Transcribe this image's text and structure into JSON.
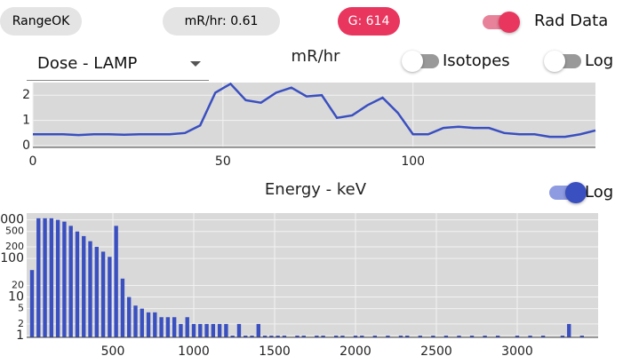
{
  "header": {
    "range": "RangeOK",
    "dose_rate": "mR/hr: 0.61",
    "gross": "G: 614",
    "rad_data": "Rad Data"
  },
  "dose_controls": {
    "dropdown": "Dose - LAMP",
    "isotopes": "Isotopes",
    "log": "Log"
  },
  "energy_controls": {
    "log": "Log"
  },
  "chart_data": [
    {
      "type": "line",
      "title": "mR/hr",
      "color": "#3a4fc0",
      "grid": true,
      "x": [
        0,
        4,
        8,
        12,
        16,
        20,
        24,
        28,
        32,
        36,
        40,
        44,
        48,
        52,
        56,
        60,
        64,
        68,
        72,
        76,
        80,
        84,
        88,
        92,
        96,
        100,
        104,
        108,
        112,
        116,
        120,
        124,
        128,
        132,
        136,
        140,
        144,
        148
      ],
      "values": [
        0.45,
        0.45,
        0.45,
        0.42,
        0.45,
        0.45,
        0.43,
        0.45,
        0.45,
        0.45,
        0.5,
        0.8,
        2.1,
        2.45,
        1.8,
        1.7,
        2.1,
        2.3,
        1.95,
        2.0,
        1.1,
        1.2,
        1.6,
        1.9,
        1.3,
        0.45,
        0.45,
        0.7,
        0.75,
        0.7,
        0.7,
        0.5,
        0.45,
        0.45,
        0.35,
        0.35,
        0.45,
        0.6
      ],
      "xlim": [
        0,
        148
      ],
      "ylim": [
        -0.07,
        2.5
      ],
      "xticks": [
        0,
        50,
        100
      ],
      "yticks": [
        0,
        1,
        2
      ]
    },
    {
      "type": "bar",
      "title": "Energy - keV",
      "color": "#3a4fc0",
      "grid": true,
      "log_scale": true,
      "x": [
        0,
        40,
        80,
        120,
        160,
        200,
        240,
        280,
        320,
        360,
        400,
        440,
        480,
        520,
        560,
        600,
        640,
        680,
        720,
        760,
        800,
        840,
        880,
        920,
        960,
        1000,
        1040,
        1080,
        1120,
        1160,
        1200,
        1240,
        1280,
        1320,
        1360,
        1400,
        1440,
        1480,
        1520,
        1560,
        1600,
        1640,
        1680,
        1720,
        1760,
        1800,
        1840,
        1880,
        1920,
        1960,
        2000,
        2040,
        2080,
        2120,
        2160,
        2200,
        2240,
        2280,
        2320,
        2360,
        2400,
        2440,
        2480,
        2520,
        2560,
        2600,
        2640,
        2680,
        2720,
        2760,
        2800,
        2840,
        2880,
        2920,
        2960,
        3000,
        3040,
        3080,
        3120,
        3160,
        3200,
        3240,
        3280,
        3320,
        3360,
        3400,
        3440
      ],
      "values": [
        50,
        1100,
        1100,
        1100,
        1000,
        900,
        700,
        500,
        380,
        280,
        200,
        150,
        110,
        700,
        30,
        10,
        6,
        5,
        4,
        4,
        3,
        3,
        3,
        2,
        3,
        2,
        2,
        2,
        2,
        2,
        2,
        1,
        2,
        1,
        1,
        2,
        1,
        1,
        1,
        1,
        0,
        1,
        1,
        0,
        1,
        1,
        0,
        1,
        1,
        0,
        1,
        1,
        0,
        1,
        0,
        1,
        0,
        1,
        1,
        0,
        1,
        0,
        1,
        0,
        1,
        0,
        1,
        0,
        1,
        0,
        1,
        0,
        1,
        0,
        0,
        1,
        0,
        1,
        0,
        1,
        0,
        0,
        1,
        2,
        0,
        1,
        0
      ],
      "xlim": [
        -33,
        3500
      ],
      "ylim": [
        0.9,
        1500
      ],
      "xticks": [
        500,
        1000,
        1500,
        2000,
        2500,
        3000
      ],
      "yticks": [
        1,
        2,
        5,
        10,
        20,
        100,
        200,
        500,
        1000
      ]
    }
  ]
}
